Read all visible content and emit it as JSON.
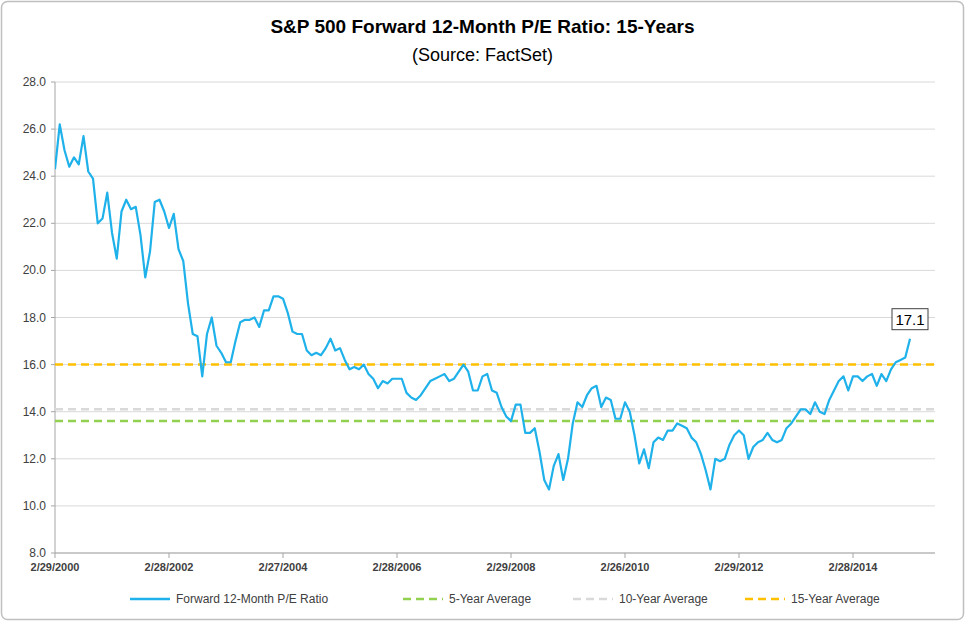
{
  "chart_data": {
    "type": "line",
    "title": "S&P 500 Forward 12-Month P/E Ratio: 15-Years",
    "subtitle": "(Source: FactSet)",
    "categories": [
      "2/29/2000",
      null,
      null,
      null,
      null,
      null,
      null,
      null,
      null,
      null,
      null,
      null,
      null,
      null,
      null,
      null,
      null,
      null,
      null,
      null,
      null,
      null,
      null,
      null,
      "2/28/2002",
      null,
      null,
      null,
      null,
      null,
      null,
      null,
      null,
      null,
      null,
      null,
      null,
      null,
      null,
      null,
      null,
      null,
      null,
      null,
      null,
      null,
      null,
      null,
      "2/27/2004",
      null,
      null,
      null,
      null,
      null,
      null,
      null,
      null,
      null,
      null,
      null,
      null,
      null,
      null,
      null,
      null,
      null,
      null,
      null,
      null,
      null,
      null,
      null,
      "2/28/2006",
      null,
      null,
      null,
      null,
      null,
      null,
      null,
      null,
      null,
      null,
      null,
      null,
      null,
      null,
      null,
      null,
      null,
      null,
      null,
      null,
      null,
      null,
      null,
      "2/29/2008",
      null,
      null,
      null,
      null,
      null,
      null,
      null,
      null,
      null,
      null,
      null,
      null,
      null,
      null,
      null,
      null,
      null,
      null,
      null,
      null,
      null,
      null,
      null,
      "2/26/2010",
      null,
      null,
      null,
      null,
      null,
      null,
      null,
      null,
      null,
      null,
      null,
      null,
      null,
      null,
      null,
      null,
      null,
      null,
      null,
      null,
      null,
      null,
      null,
      "2/29/2012",
      null,
      null,
      null,
      null,
      null,
      null,
      null,
      null,
      null,
      null,
      null,
      null,
      null,
      null,
      null,
      null,
      null,
      null,
      null,
      null,
      null,
      null,
      null,
      "2/28/2014",
      null,
      null,
      null,
      null,
      null,
      null,
      null,
      null,
      null,
      null,
      null,
      null
    ],
    "series": [
      {
        "name": "Forward 12-Month P/E Ratio",
        "color": "#1fb1ea",
        "line_style": "solid",
        "values": [
          24.3,
          26.2,
          25.1,
          24.4,
          24.8,
          24.5,
          25.7,
          24.2,
          23.9,
          22.0,
          22.2,
          23.3,
          21.6,
          20.5,
          22.5,
          23.0,
          22.6,
          22.7,
          21.5,
          19.7,
          20.8,
          22.9,
          23.0,
          22.5,
          21.8,
          22.4,
          20.9,
          20.4,
          18.6,
          17.3,
          17.2,
          15.5,
          17.3,
          18.0,
          16.8,
          16.5,
          16.1,
          16.1,
          17.0,
          17.8,
          17.9,
          17.9,
          18.0,
          17.6,
          18.3,
          18.3,
          18.9,
          18.9,
          18.8,
          18.2,
          17.4,
          17.3,
          17.3,
          16.6,
          16.4,
          16.5,
          16.4,
          16.7,
          17.1,
          16.6,
          16.7,
          16.2,
          15.8,
          15.9,
          15.8,
          16.0,
          15.6,
          15.4,
          15.0,
          15.3,
          15.2,
          15.4,
          15.4,
          15.4,
          14.8,
          14.6,
          14.5,
          14.7,
          15.0,
          15.3,
          15.4,
          15.5,
          15.6,
          15.3,
          15.4,
          15.7,
          16.0,
          15.7,
          14.9,
          14.9,
          15.5,
          15.6,
          14.9,
          14.8,
          14.2,
          13.8,
          13.6,
          14.3,
          14.3,
          13.1,
          13.1,
          13.3,
          12.3,
          11.1,
          10.7,
          11.7,
          12.2,
          11.1,
          12.0,
          13.5,
          14.4,
          14.2,
          14.7,
          15.0,
          15.1,
          14.2,
          14.6,
          14.5,
          13.7,
          13.7,
          14.4,
          14.0,
          13.0,
          11.8,
          12.4,
          11.6,
          12.7,
          12.9,
          12.8,
          13.2,
          13.2,
          13.5,
          13.4,
          13.3,
          12.9,
          12.7,
          12.2,
          11.5,
          10.7,
          12.0,
          11.9,
          12.0,
          12.6,
          13.0,
          13.2,
          13.0,
          12.0,
          12.5,
          12.7,
          12.8,
          13.1,
          12.8,
          12.7,
          12.8,
          13.3,
          13.5,
          13.8,
          14.1,
          14.1,
          13.9,
          14.4,
          14.0,
          13.9,
          14.5,
          14.9,
          15.3,
          15.5,
          14.9,
          15.5,
          15.5,
          15.3,
          15.5,
          15.6,
          15.1,
          15.6,
          15.3,
          15.8,
          16.1,
          16.2,
          16.3,
          17.1
        ]
      }
    ],
    "reference_lines": [
      {
        "name": "5-Year Average",
        "color": "#92d050",
        "line_style": "dashed",
        "value": 13.6
      },
      {
        "name": "10-Year Average",
        "color": "#d9d9d9",
        "line_style": "dashed",
        "value": 14.1
      },
      {
        "name": "15-Year Average",
        "color": "#ffc000",
        "line_style": "dashed",
        "value": 16.0
      }
    ],
    "annotations": [
      {
        "label": "17.1",
        "value": 17.1
      }
    ],
    "ylim": [
      8,
      28
    ],
    "yticks": [
      {
        "value": 8,
        "label": "8.0"
      },
      {
        "value": 10,
        "label": "10.0"
      },
      {
        "value": 12,
        "label": "12.0"
      },
      {
        "value": 14,
        "label": "14.0"
      },
      {
        "value": 16,
        "label": "16.0"
      },
      {
        "value": 18,
        "label": "18.0"
      },
      {
        "value": 20,
        "label": "20.0"
      },
      {
        "value": 22,
        "label": "22.0"
      },
      {
        "value": 24,
        "label": "24.0"
      },
      {
        "value": 26,
        "label": "26.0"
      },
      {
        "value": 28,
        "label": "28.0"
      }
    ],
    "grid": true,
    "legend": "bottom"
  }
}
